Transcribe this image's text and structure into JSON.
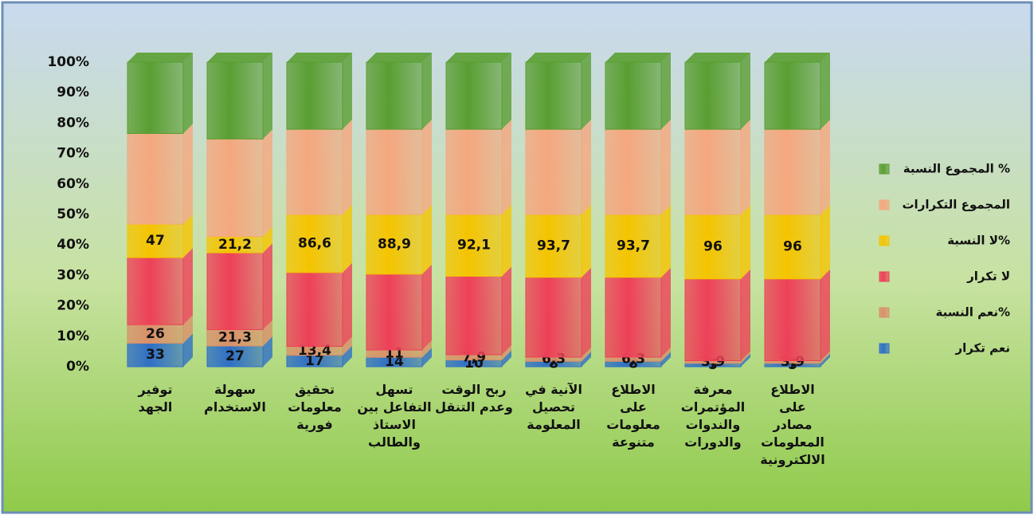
{
  "chart_data": {
    "type": "stacked_percent_bar",
    "categories": [
      "توفير\nالجهد",
      "سهولة\nالاستخدام",
      "تحقيق\nمعلومات\nفورية",
      "تسهل\nالتفاعل بين\nالاستاذ\nوالطالب",
      "ربح الوقت\nوعدم التنقل",
      "الآنية في\nتحصيل\nالمعلومة",
      "الاطلاع\nعلى\nمعلومات\nمتنوعة",
      "معرفة\nالمؤتمرات\nوالندوات\nوالدورات",
      "الاطلاع\nعلى\nمصادر\nالمعلومات\nالالكترونية"
    ],
    "series": [
      {
        "name": "نعم تكرار",
        "color": "#2f6fc6",
        "values": [
          33,
          27,
          17,
          14,
          10,
          8,
          8,
          5,
          5
        ],
        "value_labels": [
          "33",
          "27",
          "17",
          "14",
          "10",
          "8",
          "8",
          "5",
          "5"
        ]
      },
      {
        "name": "نعم النسبة%",
        "color": "#d9906a",
        "values": [
          26,
          21.3,
          13.4,
          11,
          7.9,
          6.3,
          6.3,
          3.9,
          3.9
        ],
        "value_labels": [
          "26",
          "21,3",
          "13,4",
          "11",
          "7,9",
          "6,3",
          "6,3",
          "3,9",
          "3,9"
        ]
      },
      {
        "name": "لا تكرار",
        "color": "#ee4058",
        "values": [
          94,
          100,
          110,
          113,
          117,
          119,
          119,
          122,
          122
        ]
      },
      {
        "name": "لا النسبة%",
        "color": "#f5c400",
        "values": [
          47,
          21.2,
          86.6,
          88.9,
          92.1,
          93.7,
          93.7,
          96,
          96
        ],
        "value_labels": [
          "47",
          "21,2",
          "86,6",
          "88,9",
          "92,1",
          "93,7",
          "93,7",
          "96",
          "96"
        ]
      },
      {
        "name": "المجموع التكرارات",
        "color": "#f5a77e",
        "values": [
          127,
          127,
          127,
          127,
          127,
          127,
          127,
          127,
          127
        ]
      },
      {
        "name": "المجموع النسبة %",
        "color": "#5a9e32",
        "values": [
          100,
          100,
          100,
          100,
          100,
          100,
          100,
          100,
          100
        ]
      }
    ],
    "ylim": [
      0,
      100
    ],
    "yticks": [
      {
        "value": 0,
        "label": "0%"
      },
      {
        "value": 10,
        "label": "10%"
      },
      {
        "value": 20,
        "label": "20%"
      },
      {
        "value": 30,
        "label": "30%"
      },
      {
        "value": 40,
        "label": "40%"
      },
      {
        "value": 50,
        "label": "50%"
      },
      {
        "value": 60,
        "label": "60%"
      },
      {
        "value": 70,
        "label": "70%"
      },
      {
        "value": 80,
        "label": "80%"
      },
      {
        "value": 90,
        "label": "90%"
      },
      {
        "value": 100,
        "label": "100%"
      }
    ],
    "grid": false,
    "legend": "right"
  }
}
